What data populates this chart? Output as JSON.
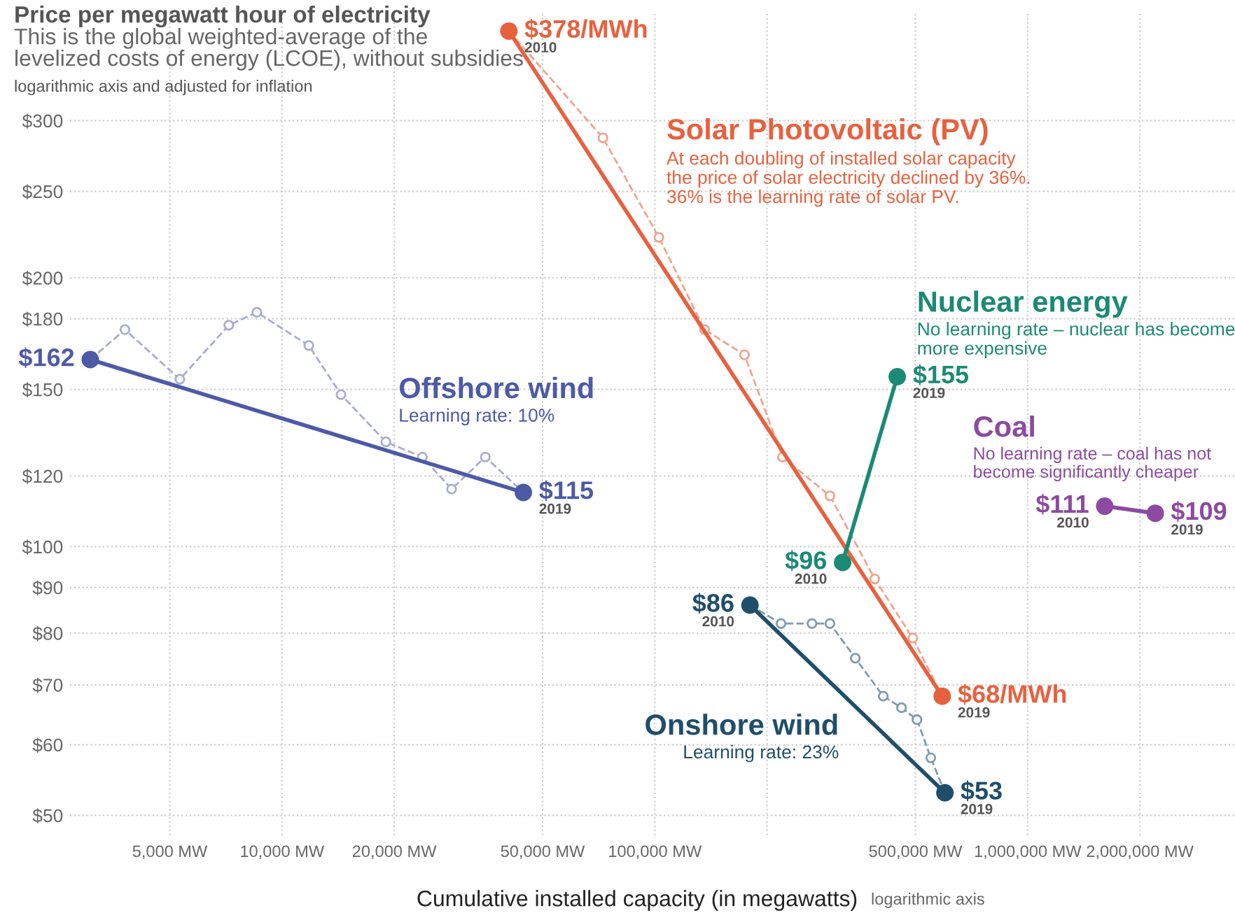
{
  "chart_data": {
    "type": "line",
    "title": "Price per megawatt hour of electricity",
    "subtitle": "This is the global weighted-average of the\nlevelized costs of energy (LCOE), without subsidies",
    "xlabel": "Cumulative installed capacity (in megawatts)",
    "log": "xy",
    "grid": true,
    "legend": false,
    "xlim": [
      2700,
      3600000
    ],
    "ylim": [
      47.5,
      395
    ],
    "xticks": [
      {
        "value": 5000,
        "label": "5,000 MW"
      },
      {
        "value": 10000,
        "label": "10,000 MW"
      },
      {
        "value": 20000,
        "label": "20,000 MW"
      },
      {
        "value": 50000,
        "label": "50,000 MW"
      },
      {
        "value": 100000,
        "label": "100,000 MW"
      },
      {
        "value": 200000,
        "label": null
      },
      {
        "value": 500000,
        "label": "500,000 MW"
      },
      {
        "value": 1000000,
        "label": "1,000,000 MW"
      },
      {
        "value": 2000000,
        "label": "2,000,000 MW"
      }
    ],
    "yticks": [
      {
        "value": 50,
        "label": "$50"
      },
      {
        "value": 60,
        "label": "$60"
      },
      {
        "value": 70,
        "label": "$70"
      },
      {
        "value": 80,
        "label": "$80"
      },
      {
        "value": 90,
        "label": "$90"
      },
      {
        "value": 100,
        "label": "$100"
      },
      {
        "value": 120,
        "label": "$120"
      },
      {
        "value": 150,
        "label": "$150"
      },
      {
        "value": 180,
        "label": "$180"
      },
      {
        "value": 200,
        "label": "$200"
      },
      {
        "value": 250,
        "label": "$250"
      },
      {
        "value": 300,
        "label": "$300"
      }
    ],
    "series": [
      {
        "color": "#f0a48f",
        "line_style": "dashed",
        "marker": "circle",
        "x": [
          40600,
          72600,
          102600,
          136000,
          174000,
          220000,
          295000,
          389000,
          492000,
          590000
        ],
        "values": [
          378,
          287,
          222,
          175,
          164,
          126,
          114,
          92,
          79,
          68
        ]
      },
      {
        "name": "Solar Photovoltaic (PV)",
        "color": "#e8613f",
        "line_style": "solid",
        "marker": "circle",
        "x": [
          40600,
          590000
        ],
        "values": [
          378,
          68
        ],
        "value_labels": [
          "$378/MWh",
          "$68/MWh"
        ]
      },
      {
        "color": "#a9acd2",
        "line_style": "dashed",
        "marker": "circle",
        "x": [
          3060,
          3790,
          5320,
          7200,
          8560,
          11800,
          14400,
          19000,
          23800,
          28500,
          35100,
          44400
        ],
        "values": [
          162,
          175,
          154,
          177,
          183,
          168,
          148,
          131,
          126,
          116,
          126,
          115
        ]
      },
      {
        "name": "Offshore wind",
        "color": "#4d5aa6",
        "line_style": "solid",
        "marker": "circle",
        "x": [
          3060,
          44400
        ],
        "values": [
          162,
          115
        ],
        "value_labels": [
          "$162",
          "$115"
        ]
      },
      {
        "color": "#7f9bb0",
        "line_style": "dashed",
        "marker": "circle",
        "x": [
          180000,
          218000,
          264000,
          295000,
          345000,
          410000,
          459000,
          505000,
          550000,
          600000
        ],
        "values": [
          86,
          82,
          82,
          82,
          75,
          68,
          66,
          64,
          58,
          53
        ]
      },
      {
        "name": "Onshore wind",
        "color": "#1f4e6b",
        "line_style": "solid",
        "marker": "circle",
        "x": [
          180000,
          600000
        ],
        "values": [
          86,
          53
        ],
        "value_labels": [
          "$86",
          "$53"
        ]
      },
      {
        "name": "Nuclear energy",
        "color": "#1b8a74",
        "line_style": "solid",
        "marker": "circle",
        "x": [
          319000,
          447000
        ],
        "values": [
          96,
          155
        ],
        "value_labels": [
          "$96",
          "$155"
        ]
      },
      {
        "name": "Coal",
        "color": "#8d4aa0",
        "line_style": "solid",
        "marker": "circle",
        "x": [
          1610000,
          2200000
        ],
        "values": [
          111,
          109
        ],
        "value_labels": [
          "$111",
          "$109"
        ]
      }
    ],
    "annotations": [
      "logarithmic axis and adjusted for inflation",
      "At each doubling of installed solar capacity\nthe price of solar electricity declined by 36%.\n36% is the learning rate of solar PV.",
      "Learning rate: 10%",
      "Learning rate: 23%",
      "No learning rate – nuclear has become\nmore expensive",
      "No learning rate – coal has not\nbecome significantly cheaper",
      "logarithmic axis",
      {
        "text": "2010",
        "x": 40600,
        "y": 378
      },
      {
        "text": "2019",
        "x": 590000,
        "y": 68
      },
      {
        "text": "2019",
        "x": 44400,
        "y": 115
      },
      {
        "text": "2010",
        "x": 180000,
        "y": 86
      },
      {
        "text": "2019",
        "x": 600000,
        "y": 53
      },
      {
        "text": "2010",
        "x": 319000,
        "y": 96
      },
      {
        "text": "2019",
        "x": 447000,
        "y": 155
      },
      {
        "text": "2010",
        "x": 1610000,
        "y": 111
      },
      {
        "text": "2019",
        "x": 2200000,
        "y": 109
      }
    ]
  }
}
